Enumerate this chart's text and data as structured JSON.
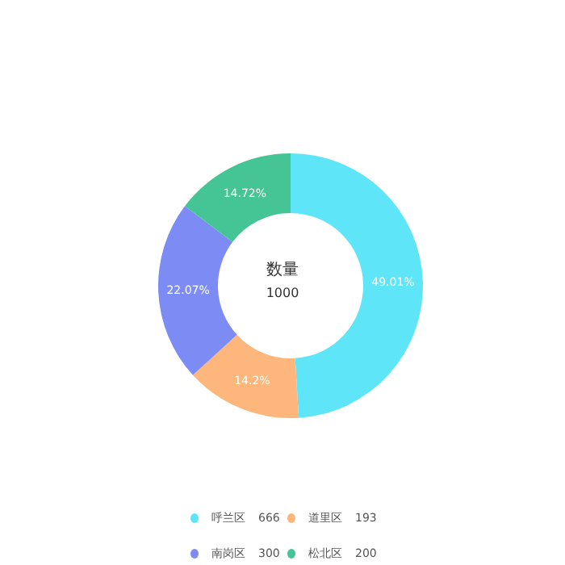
{
  "chart_data": {
    "type": "donut",
    "categories": [
      "呼兰区",
      "道里区",
      "南岗区",
      "松北区"
    ],
    "values": [
      49.01,
      14.2,
      22.07,
      14.72
    ],
    "colors": [
      "#5ee6f8",
      "#fdb77c",
      "#7d8bf4",
      "#45c495"
    ],
    "value_labels": [
      "49.01%",
      "14.2%",
      "22.07%",
      "14.72%"
    ],
    "annotations": [
      "数量",
      "1000",
      "666",
      "193",
      "300",
      "200"
    ],
    "legend": "bottom"
  }
}
